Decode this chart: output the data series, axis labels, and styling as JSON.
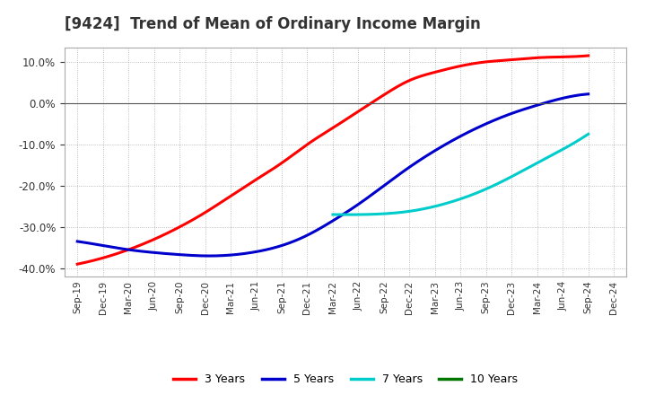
{
  "title": "[9424]  Trend of Mean of Ordinary Income Margin",
  "title_fontsize": 12,
  "title_color": "#333333",
  "ylim": [
    -0.42,
    0.135
  ],
  "yticks": [
    -0.4,
    -0.3,
    -0.2,
    -0.1,
    0.0,
    0.1
  ],
  "xtick_labels": [
    "Sep-19",
    "Dec-19",
    "Mar-20",
    "Jun-20",
    "Sep-20",
    "Dec-20",
    "Mar-21",
    "Jun-21",
    "Sep-21",
    "Dec-21",
    "Mar-22",
    "Jun-22",
    "Sep-22",
    "Dec-22",
    "Mar-23",
    "Jun-23",
    "Sep-23",
    "Dec-23",
    "Mar-24",
    "Jun-24",
    "Sep-24",
    "Dec-24"
  ],
  "background_color": "#ffffff",
  "plot_bg_color": "#ffffff",
  "grid_color": "#888888",
  "color_3yr": "#ff0000",
  "color_5yr": "#0000cc",
  "color_7yr": "#00cccc",
  "color_10yr": "#007700",
  "label_3yr": "3 Years",
  "label_5yr": "5 Years",
  "label_7yr": "7 Years",
  "label_10yr": "10 Years",
  "linewidth": 2.2,
  "pts_3yr_t": [
    0,
    1,
    2,
    3,
    4,
    5,
    6,
    7,
    8,
    9,
    10,
    11,
    12,
    13,
    14,
    15,
    16,
    17,
    18,
    19,
    20
  ],
  "pts_3yr_y": [
    -0.39,
    -0.375,
    -0.355,
    -0.33,
    -0.3,
    -0.265,
    -0.225,
    -0.185,
    -0.145,
    -0.1,
    -0.06,
    -0.02,
    0.02,
    0.055,
    0.075,
    0.09,
    0.1,
    0.105,
    0.11,
    0.112,
    0.115
  ],
  "pts_5yr_t": [
    0,
    1,
    2,
    3,
    4,
    5,
    6,
    7,
    8,
    9,
    10,
    11,
    12,
    13,
    14,
    15,
    16,
    17,
    18,
    19,
    20
  ],
  "pts_5yr_y": [
    -0.335,
    -0.345,
    -0.355,
    -0.362,
    -0.367,
    -0.37,
    -0.368,
    -0.36,
    -0.345,
    -0.32,
    -0.285,
    -0.245,
    -0.2,
    -0.155,
    -0.115,
    -0.08,
    -0.05,
    -0.025,
    -0.005,
    0.012,
    0.022
  ],
  "pts_7yr_t": [
    10,
    11,
    12,
    13,
    14,
    15,
    16,
    17,
    18,
    19,
    20
  ],
  "pts_7yr_y": [
    -0.27,
    -0.27,
    -0.268,
    -0.262,
    -0.25,
    -0.232,
    -0.208,
    -0.178,
    -0.145,
    -0.112,
    -0.075
  ]
}
